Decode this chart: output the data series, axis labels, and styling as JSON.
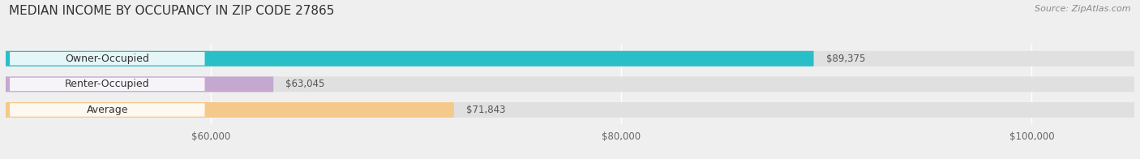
{
  "title": "MEDIAN INCOME BY OCCUPANCY IN ZIP CODE 27865",
  "source": "Source: ZipAtlas.com",
  "categories": [
    "Owner-Occupied",
    "Renter-Occupied",
    "Average"
  ],
  "values": [
    89375,
    63045,
    71843
  ],
  "labels": [
    "$89,375",
    "$63,045",
    "$71,843"
  ],
  "bar_colors": [
    "#29bec8",
    "#c4a8d0",
    "#f5c98a"
  ],
  "xmin": 50000,
  "xmax": 105000,
  "xticks": [
    60000,
    80000,
    100000
  ],
  "xticklabels": [
    "$60,000",
    "$80,000",
    "$100,000"
  ],
  "background_color": "#efefef",
  "bar_background_color": "#e0e0e0",
  "title_fontsize": 11,
  "source_fontsize": 8,
  "label_fontsize": 8.5,
  "category_fontsize": 9
}
